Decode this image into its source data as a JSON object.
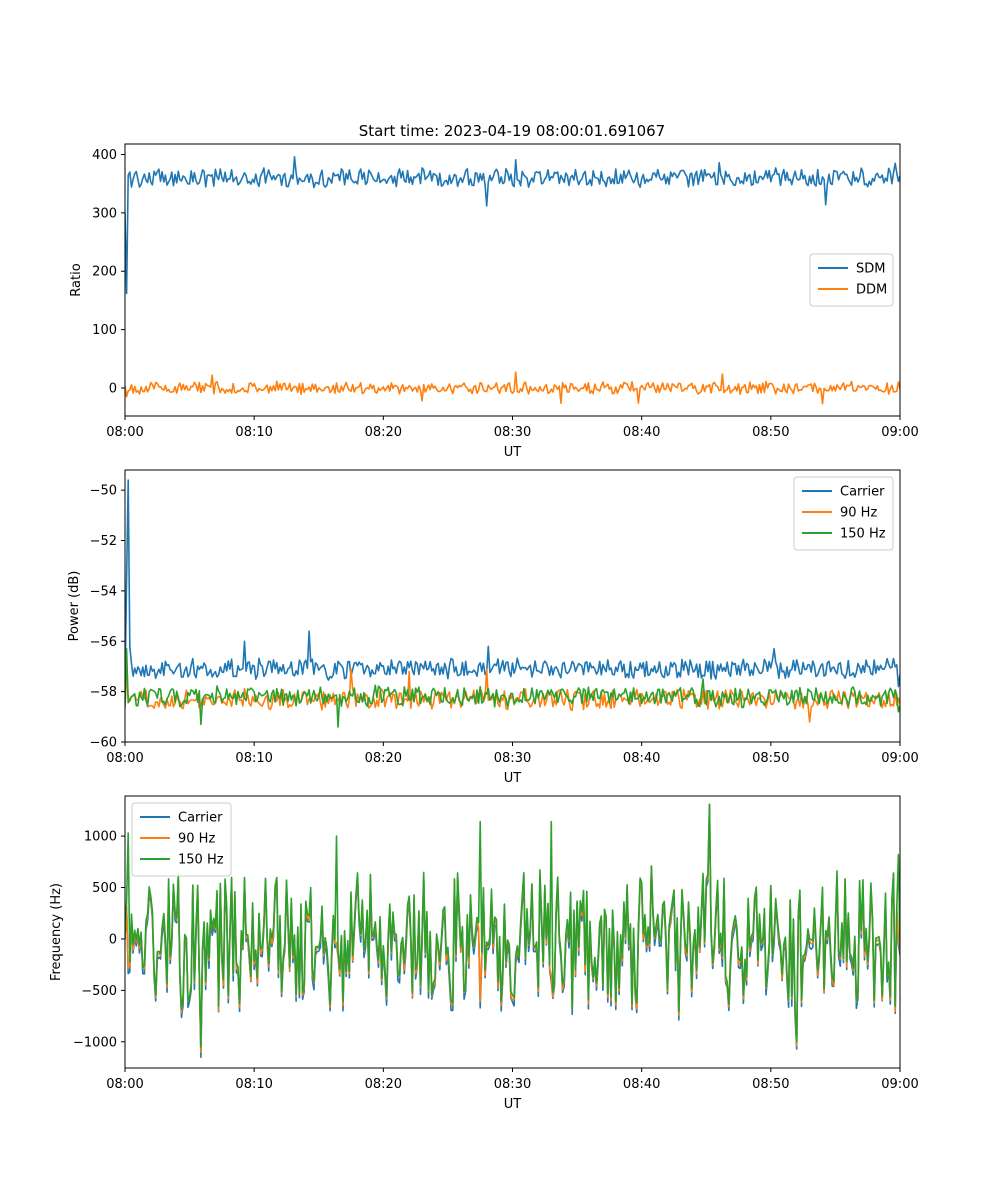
{
  "title": "Start time: 2023-04-19 08:00:01.691067",
  "colors": {
    "c0": "#1f77b4",
    "c1": "#ff7f0e",
    "c2": "#2ca02c"
  },
  "chart_data": [
    {
      "type": "line",
      "xlabel": "UT",
      "ylabel": "Ratio",
      "xticks": [
        "08:00",
        "08:10",
        "08:20",
        "08:30",
        "08:40",
        "08:50",
        "09:00"
      ],
      "xlim_minutes": [
        0,
        60
      ],
      "yticks": [
        0,
        100,
        200,
        300,
        400
      ],
      "ylim": [
        -48,
        418
      ],
      "legend": "center-right",
      "series": [
        {
          "name": "SDM",
          "color": "#1f77b4",
          "base": 360,
          "amp": 14,
          "spikes": [
            [
              0.0,
              300
            ],
            [
              0.15,
              162
            ],
            [
              0.35,
              370
            ],
            [
              13.1,
              396
            ],
            [
              28.0,
              312
            ],
            [
              30.3,
              391
            ],
            [
              46.0,
              386
            ],
            [
              54.3,
              314
            ],
            [
              59.6,
              385
            ]
          ]
        },
        {
          "name": "DDM",
          "color": "#ff7f0e",
          "base": 0,
          "amp": 9,
          "spikes": [
            [
              0.1,
              -15
            ],
            [
              6.8,
              22
            ],
            [
              23.0,
              -22
            ],
            [
              30.2,
              27
            ],
            [
              33.8,
              -26
            ],
            [
              39.7,
              -26
            ],
            [
              46.2,
              24
            ],
            [
              54.0,
              -27
            ]
          ]
        }
      ]
    },
    {
      "type": "line",
      "xlabel": "UT",
      "ylabel": "Power (dB)",
      "xticks": [
        "08:00",
        "08:10",
        "08:20",
        "08:30",
        "08:40",
        "08:50",
        "09:00"
      ],
      "xlim_minutes": [
        0,
        60
      ],
      "yticks": [
        -60,
        -58,
        -56,
        -54,
        -52,
        -50
      ],
      "ylim": [
        -60,
        -49.2
      ],
      "legend": "top-right",
      "series": [
        {
          "name": "Carrier",
          "color": "#1f77b4",
          "base": -57.1,
          "amp": 0.35,
          "spikes": [
            [
              0.0,
              -57.8
            ],
            [
              0.1,
              -53.5
            ],
            [
              0.2,
              -49.6
            ],
            [
              0.35,
              -56.2
            ],
            [
              9.2,
              -56.0
            ],
            [
              14.3,
              -55.6
            ],
            [
              28.1,
              -56.2
            ],
            [
              50.3,
              -56.3
            ],
            [
              59.9,
              -57.8
            ]
          ]
        },
        {
          "name": "90 Hz",
          "color": "#ff7f0e",
          "base": -58.3,
          "amp": 0.35,
          "spikes": [
            [
              0.1,
              -57.2
            ],
            [
              17.5,
              -57.1
            ],
            [
              22.0,
              -57.2
            ],
            [
              28.0,
              -57.1
            ],
            [
              53.0,
              -59.2
            ]
          ]
        },
        {
          "name": "150 Hz",
          "color": "#2ca02c",
          "base": -58.2,
          "amp": 0.35,
          "spikes": [
            [
              0.1,
              -56.3
            ],
            [
              5.9,
              -59.3
            ],
            [
              16.5,
              -59.4
            ],
            [
              44.8,
              -57.5
            ],
            [
              59.9,
              -58.8
            ]
          ]
        }
      ]
    },
    {
      "type": "line",
      "xlabel": "UT",
      "ylabel": "Frequency (Hz)",
      "xticks": [
        "08:00",
        "08:10",
        "08:20",
        "08:30",
        "08:40",
        "08:50",
        "09:00"
      ],
      "xlim_minutes": [
        0,
        60
      ],
      "yticks": [
        -1000,
        -500,
        0,
        500,
        1000
      ],
      "ylim": [
        -1255,
        1390
      ],
      "legend": "top-left",
      "series": [
        {
          "name": "Carrier",
          "color": "#1f77b4",
          "offset": -70,
          "spikes": [
            [
              5.9,
              -1150
            ],
            [
              45.3,
              1300
            ],
            [
              52.0,
              -1070
            ]
          ]
        },
        {
          "name": "90 Hz",
          "color": "#ff7f0e",
          "offset": -30,
          "spikes": [
            [
              5.9,
              -1100
            ],
            [
              45.3,
              1300
            ],
            [
              52.0,
              -1040
            ]
          ]
        },
        {
          "name": "150 Hz",
          "color": "#2ca02c",
          "offset": 0,
          "spikes": [
            [
              0.2,
              1030
            ],
            [
              5.9,
              -1050
            ],
            [
              16.4,
              1000
            ],
            [
              27.5,
              1140
            ],
            [
              33.0,
              1140
            ],
            [
              45.3,
              1310
            ],
            [
              52.0,
              -1000
            ],
            [
              59.9,
              820
            ]
          ]
        }
      ]
    }
  ]
}
